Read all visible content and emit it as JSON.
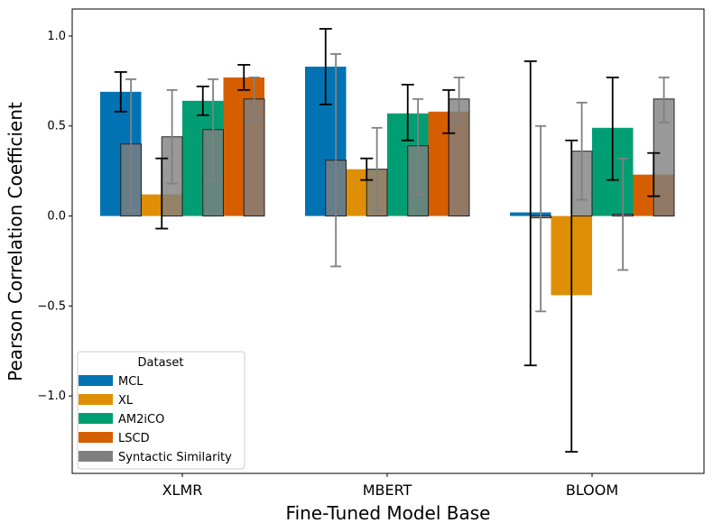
{
  "chart_data": {
    "type": "bar",
    "title": "",
    "xlabel": "Fine-Tuned Model Base",
    "ylabel": "Pearson Correlation Coefficient",
    "ylim": [
      -1.43,
      1.15
    ],
    "yticks": [
      -1.0,
      -0.5,
      0.0,
      0.5,
      1.0
    ],
    "ytick_labels": [
      "−1.0",
      "−0.5",
      "0.0",
      "0.5",
      "1.0"
    ],
    "categories": [
      "XLMR",
      "MBERT",
      "BLOOM"
    ],
    "legend": {
      "title": "Dataset",
      "position": "lower-left",
      "entries": [
        "MCL",
        "XL",
        "AM2iCO",
        "LSCD",
        "Syntactic Similarity"
      ]
    },
    "series": [
      {
        "name": "MCL",
        "color": "#0173b2",
        "values": [
          0.69,
          0.83,
          0.02
        ],
        "err_low": [
          0.58,
          0.62,
          -0.83
        ],
        "err_high": [
          0.8,
          1.04,
          0.86
        ]
      },
      {
        "name": "XL",
        "color": "#de8f05",
        "values": [
          0.12,
          0.26,
          -0.44
        ],
        "err_low": [
          -0.07,
          0.2,
          -1.31
        ],
        "err_high": [
          0.32,
          0.32,
          0.42
        ]
      },
      {
        "name": "AM2iCO",
        "color": "#029e73",
        "values": [
          0.64,
          0.57,
          0.49
        ],
        "err_low": [
          0.56,
          0.42,
          0.2
        ],
        "err_high": [
          0.72,
          0.73,
          0.77
        ]
      },
      {
        "name": "LSCD",
        "color": "#d55e00",
        "values": [
          0.77,
          0.58,
          0.23
        ],
        "err_low": [
          0.7,
          0.46,
          0.11
        ],
        "err_high": [
          0.84,
          0.7,
          0.35
        ]
      }
    ],
    "syntactic_similarity": {
      "name": "Syntactic Similarity",
      "color": "#7f7f7f",
      "values": [
        [
          0.4,
          0.44,
          0.48,
          0.65
        ],
        [
          0.31,
          0.26,
          0.39,
          0.65
        ],
        [
          -0.01,
          0.36,
          0.01,
          0.65
        ]
      ],
      "err_low": [
        [
          0.03,
          0.18,
          0.2,
          0.53
        ],
        [
          -0.28,
          0.03,
          0.12,
          0.52
        ],
        [
          -0.53,
          0.09,
          -0.3,
          0.52
        ]
      ],
      "err_high": [
        [
          0.76,
          0.7,
          0.76,
          0.77
        ],
        [
          0.9,
          0.49,
          0.65,
          0.77
        ],
        [
          0.5,
          0.63,
          0.32,
          0.77
        ]
      ]
    }
  }
}
